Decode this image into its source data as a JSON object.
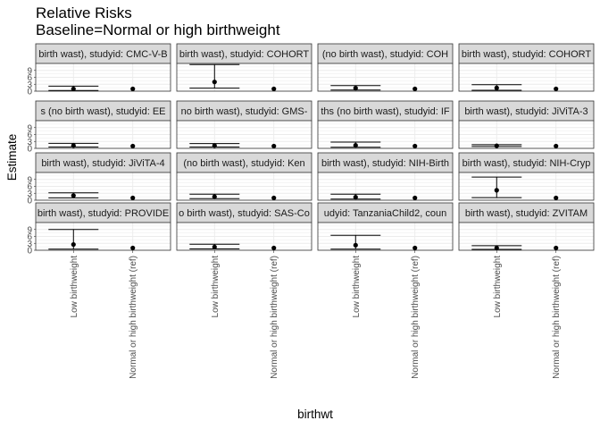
{
  "chart_data": {
    "type": "scatter",
    "title": "Relative Risks",
    "subtitle": "Baseline=Normal or high birthweight",
    "xlabel": "birthwt",
    "ylabel": "Estimate",
    "categories": [
      "Low birthweight",
      "Normal or high birthweight (ref)"
    ],
    "yticks": [
      "0",
      "3",
      "6",
      "9"
    ],
    "ylim": [
      0,
      12
    ],
    "grid": true,
    "facet_layout": {
      "rows": 4,
      "cols": 4
    },
    "panels": [
      {
        "label": "birth wast), studyid: CMC-V-B",
        "estimate": 1.0,
        "lower": 0.3,
        "upper": 2.2
      },
      {
        "label": "birth wast), studyid: COHORT",
        "estimate": 4.0,
        "lower": 1.3,
        "upper": 11.5
      },
      {
        "label": "(no birth wast), studyid: COH",
        "estimate": 1.3,
        "lower": 0.5,
        "upper": 2.4
      },
      {
        "label": "birth wast), studyid: COHORT",
        "estimate": 1.4,
        "lower": 0.4,
        "upper": 2.8
      },
      {
        "label": "s (no birth wast), studyid: EE",
        "estimate": 1.2,
        "lower": 0.6,
        "upper": 2.2
      },
      {
        "label": "no birth wast), studyid: GMS-",
        "estimate": 1.2,
        "lower": 0.6,
        "upper": 2.1
      },
      {
        "label": "ths (no birth wast), studyid: IF",
        "estimate": 1.3,
        "lower": 0.5,
        "upper": 2.7
      },
      {
        "label": "birth wast), studyid: JiViTA-3",
        "estimate": 1.1,
        "lower": 0.8,
        "upper": 1.6
      },
      {
        "label": "birth wast), studyid: JiViTA-4",
        "estimate": 2.0,
        "lower": 1.0,
        "upper": 3.2
      },
      {
        "label": "(no birth wast), studyid: Ken",
        "estimate": 1.5,
        "lower": 0.7,
        "upper": 2.6
      },
      {
        "label": "birth wast), studyid: NIH-Birth",
        "estimate": 1.3,
        "lower": 0.5,
        "upper": 2.6
      },
      {
        "label": "birth wast), studyid: NIH-Cryp",
        "estimate": 4.3,
        "lower": 1.1,
        "upper": 10.0
      },
      {
        "label": "birth wast), studyid: PROVIDE",
        "estimate": 2.5,
        "lower": 0.5,
        "upper": 9.0
      },
      {
        "label": "o birth wast), studyid: SAS-Co",
        "estimate": 1.4,
        "lower": 0.6,
        "upper": 2.6
      },
      {
        "label": "udyid: TanzaniaChild2, coun",
        "estimate": 2.2,
        "lower": 0.5,
        "upper": 6.5
      },
      {
        "label": "birth wast), studyid: ZVITAM",
        "estimate": 1.0,
        "lower": 0.4,
        "upper": 2.0
      }
    ],
    "reference_estimate": 1.0
  }
}
